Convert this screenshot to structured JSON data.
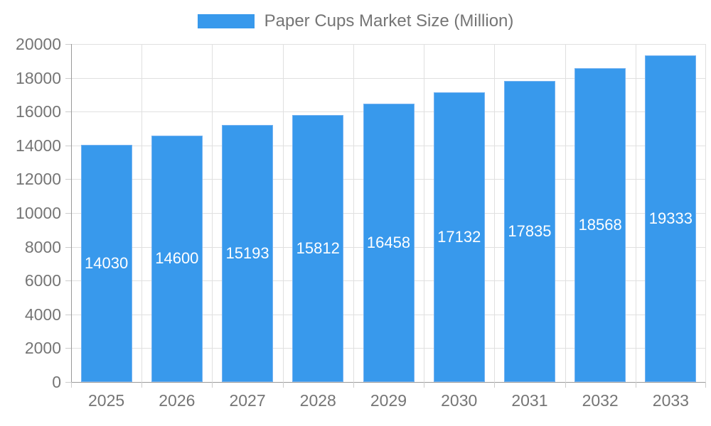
{
  "legend": {
    "label": "Paper Cups Market Size (Million)"
  },
  "chart_data": {
    "type": "bar",
    "title": "Paper Cups Market Size (Million)",
    "series_name": "Paper Cups Market Size (Million)",
    "categories": [
      "2025",
      "2026",
      "2027",
      "2028",
      "2029",
      "2030",
      "2031",
      "2032",
      "2033"
    ],
    "values": [
      14030,
      14600,
      15193,
      15812,
      16458,
      17132,
      17835,
      18568,
      19333
    ],
    "xlabel": "",
    "ylabel": "",
    "ylim": [
      0,
      20000
    ],
    "ytick_step": 2000,
    "grid": true,
    "legend_position": "top",
    "colors": {
      "bar": "#3899ec",
      "bar_border": "#74b2f1",
      "bar_label": "#ffffff",
      "axis_text": "#757575",
      "grid_line": "#e0e0e0",
      "axis_line": "#999999",
      "tick_line": "#cccccc"
    }
  }
}
